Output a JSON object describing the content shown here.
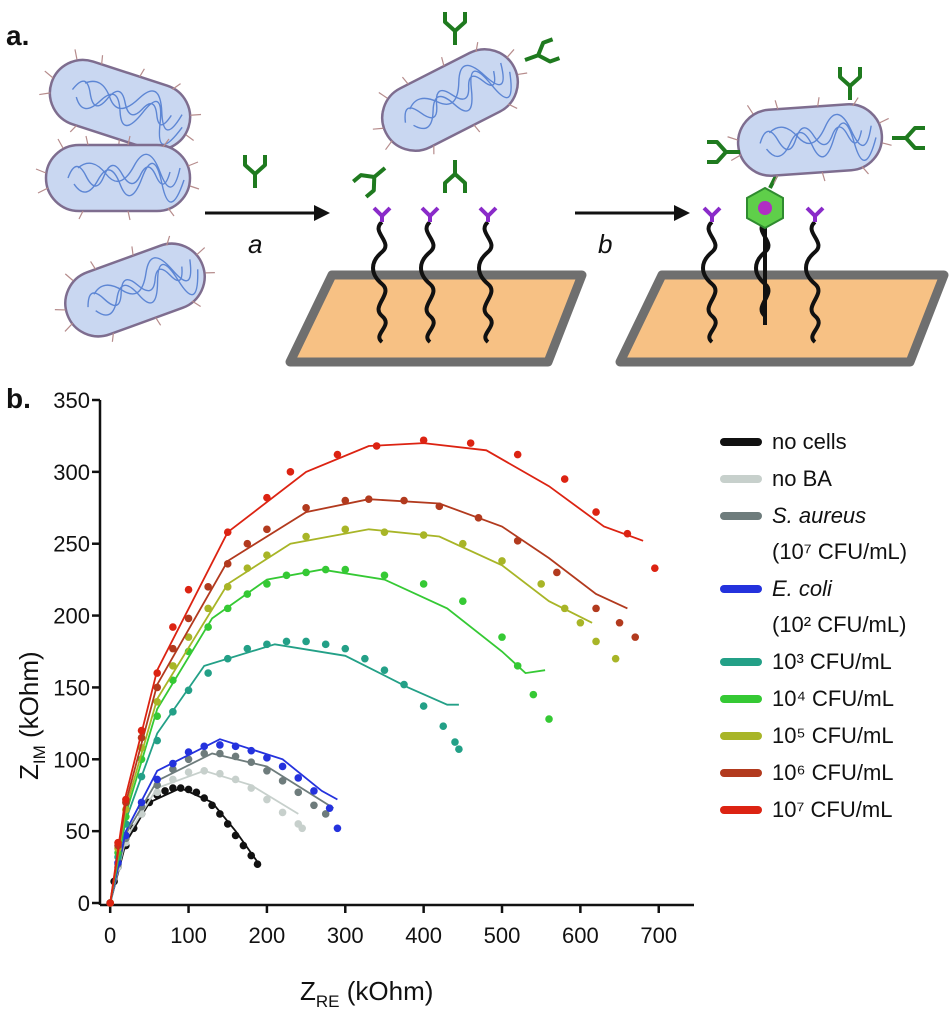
{
  "panels": {
    "a": {
      "label": "a."
    },
    "b": {
      "label": "b."
    }
  },
  "diagram": {
    "step_a": "a",
    "step_b": "b"
  },
  "chart_data": {
    "type": "scatter",
    "x_label": {
      "symbol": "Z",
      "subscript": "RE",
      "unit": " (kOhm)"
    },
    "y_label": {
      "symbol": "Z",
      "subscript": "IM",
      "unit": " (kOhm)"
    },
    "xlim": [
      -13,
      745
    ],
    "ylim": [
      0,
      350
    ],
    "xticks": [
      0,
      100,
      200,
      300,
      400,
      500,
      600,
      700
    ],
    "yticks": [
      0,
      50,
      100,
      150,
      200,
      250,
      300,
      350
    ],
    "series": [
      {
        "name": [
          "no cells"
        ],
        "color": "#111111",
        "x": [
          0,
          5,
          10,
          20,
          30,
          40,
          50,
          60,
          70,
          80,
          90,
          100,
          110,
          120,
          130,
          140,
          150,
          160,
          170,
          180,
          188
        ],
        "values": [
          0,
          15,
          25,
          40,
          52,
          62,
          70,
          75,
          78,
          80,
          80,
          79,
          77,
          73,
          68,
          62,
          55,
          47,
          40,
          33,
          27
        ],
        "fit": {
          "x": [
            0,
            20,
            50,
            90,
            130,
            160,
            190
          ],
          "values": [
            0,
            42,
            70,
            80,
            70,
            50,
            27
          ]
        }
      },
      {
        "name": [
          "no BA"
        ],
        "color": "#c7d0cc",
        "x": [
          0,
          10,
          20,
          40,
          60,
          80,
          100,
          120,
          140,
          160,
          180,
          200,
          220,
          240,
          245
        ],
        "values": [
          0,
          25,
          42,
          62,
          77,
          86,
          91,
          92,
          90,
          86,
          80,
          72,
          63,
          55,
          52
        ],
        "fit": {
          "x": [
            0,
            20,
            60,
            120,
            180,
            240
          ],
          "values": [
            0,
            45,
            80,
            92,
            82,
            62
          ]
        }
      },
      {
        "name": [
          "S. aureus",
          "(10⁷ CFU/mL)"
        ],
        "italic": true,
        "color": "#6e7c7c",
        "x": [
          0,
          10,
          20,
          40,
          60,
          80,
          100,
          120,
          140,
          160,
          180,
          200,
          220,
          240,
          260,
          275
        ],
        "values": [
          0,
          27,
          45,
          67,
          82,
          93,
          100,
          104,
          104,
          102,
          98,
          92,
          85,
          77,
          68,
          62
        ],
        "fit": {
          "x": [
            0,
            20,
            60,
            130,
            200,
            285
          ],
          "values": [
            0,
            48,
            85,
            104,
            95,
            66
          ]
        }
      },
      {
        "name": [
          "E. coli",
          "(10² CFU/mL)"
        ],
        "italic": true,
        "color": "#2432dd",
        "x": [
          0,
          10,
          20,
          40,
          60,
          80,
          100,
          120,
          140,
          160,
          180,
          200,
          220,
          240,
          260,
          280,
          290
        ],
        "values": [
          0,
          28,
          47,
          70,
          86,
          97,
          105,
          109,
          110,
          109,
          106,
          101,
          95,
          87,
          78,
          66,
          52
        ],
        "fit": {
          "x": [
            0,
            20,
            60,
            140,
            220,
            270,
            290
          ],
          "values": [
            0,
            50,
            92,
            114,
            100,
            78,
            72
          ]
        }
      },
      {
        "name": [
          "10³ CFU/mL"
        ],
        "color": "#23a087",
        "x": [
          0,
          10,
          20,
          40,
          60,
          80,
          100,
          125,
          150,
          175,
          200,
          225,
          250,
          275,
          300,
          325,
          350,
          375,
          400,
          425,
          440,
          445
        ],
        "values": [
          0,
          32,
          55,
          88,
          113,
          133,
          148,
          160,
          170,
          177,
          180,
          182,
          182,
          180,
          177,
          170,
          162,
          152,
          137,
          123,
          112,
          107
        ],
        "fit": {
          "x": [
            0,
            20,
            60,
            120,
            210,
            300,
            380,
            430,
            445
          ],
          "values": [
            0,
            58,
            118,
            165,
            180,
            172,
            150,
            138,
            138
          ]
        }
      },
      {
        "name": [
          "10⁴ CFU/mL"
        ],
        "color": "#35c934",
        "x": [
          0,
          10,
          20,
          40,
          60,
          80,
          100,
          125,
          150,
          175,
          200,
          225,
          250,
          275,
          300,
          350,
          400,
          450,
          500,
          520,
          540,
          560
        ],
        "values": [
          0,
          35,
          60,
          100,
          130,
          155,
          175,
          192,
          205,
          215,
          222,
          228,
          230,
          232,
          232,
          228,
          222,
          210,
          185,
          165,
          145,
          128
        ],
        "fit": {
          "x": [
            0,
            20,
            60,
            130,
            200,
            270,
            350,
            430,
            500,
            530,
            555
          ],
          "values": [
            0,
            62,
            135,
            198,
            225,
            232,
            225,
            205,
            175,
            160,
            162
          ]
        }
      },
      {
        "name": [
          "10⁵ CFU/mL"
        ],
        "color": "#a8b527",
        "x": [
          0,
          10,
          20,
          40,
          60,
          80,
          100,
          125,
          150,
          175,
          200,
          250,
          300,
          350,
          400,
          450,
          500,
          550,
          580,
          600,
          620,
          645
        ],
        "values": [
          0,
          38,
          65,
          108,
          140,
          165,
          185,
          205,
          220,
          233,
          242,
          255,
          260,
          258,
          256,
          250,
          238,
          222,
          205,
          195,
          182,
          170
        ],
        "fit": {
          "x": [
            0,
            20,
            60,
            150,
            230,
            330,
            420,
            500,
            560,
            615
          ],
          "values": [
            0,
            66,
            142,
            222,
            250,
            260,
            255,
            235,
            210,
            195
          ]
        }
      },
      {
        "name": [
          "10⁶ CFU/mL"
        ],
        "color": "#b23a1e",
        "x": [
          0,
          10,
          20,
          40,
          60,
          80,
          100,
          125,
          150,
          175,
          200,
          250,
          300,
          330,
          375,
          420,
          470,
          520,
          570,
          620,
          650,
          670
        ],
        "values": [
          0,
          40,
          70,
          115,
          150,
          177,
          198,
          220,
          236,
          250,
          260,
          275,
          280,
          281,
          280,
          276,
          268,
          252,
          230,
          205,
          195,
          185
        ],
        "fit": {
          "x": [
            0,
            20,
            60,
            150,
            250,
            330,
            420,
            500,
            560,
            620,
            660
          ],
          "values": [
            0,
            70,
            152,
            238,
            272,
            281,
            278,
            262,
            240,
            215,
            205
          ]
        }
      },
      {
        "name": [
          "10⁷ CFU/mL"
        ],
        "color": "#dc2312",
        "x": [
          0,
          10,
          20,
          40,
          60,
          80,
          100,
          150,
          200,
          230,
          290,
          340,
          400,
          460,
          520,
          580,
          620,
          660,
          695
        ],
        "values": [
          0,
          42,
          72,
          120,
          160,
          192,
          218,
          258,
          282,
          300,
          312,
          318,
          322,
          320,
          312,
          295,
          272,
          257,
          233
        ],
        "fit": {
          "x": [
            0,
            20,
            60,
            150,
            250,
            330,
            400,
            480,
            560,
            630,
            680
          ],
          "values": [
            0,
            75,
            162,
            258,
            300,
            318,
            320,
            315,
            290,
            262,
            252
          ]
        }
      }
    ]
  }
}
